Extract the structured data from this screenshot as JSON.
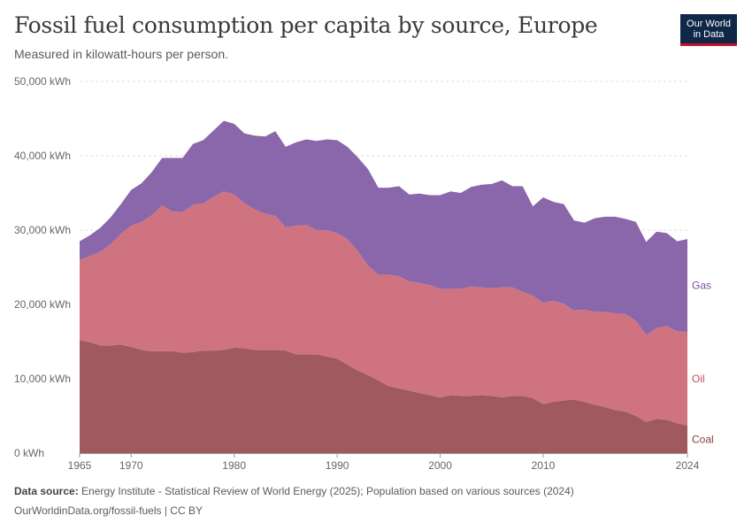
{
  "title": "Fossil fuel consumption per capita by source, Europe",
  "subtitle": "Measured in kilowatt-hours per person.",
  "logo": {
    "line1": "Our World",
    "line2": "in Data"
  },
  "footer": {
    "source_label": "Data source:",
    "source_text": "Energy Institute - Statistical Review of World Energy (2025); Population based on various sources (2024)",
    "url": "OurWorldinData.org/fossil-fuels | CC BY"
  },
  "colors": {
    "coal": "#a05a5f",
    "oil": "#cf7380",
    "gas": "#8a66aa",
    "coal_label": "#8b3a40",
    "oil_label": "#c24d5f",
    "gas_label": "#7a4f9e"
  },
  "chart_data": {
    "type": "area",
    "stacked": true,
    "x": [
      1965,
      1966,
      1967,
      1968,
      1969,
      1970,
      1971,
      1972,
      1973,
      1974,
      1975,
      1976,
      1977,
      1978,
      1979,
      1980,
      1981,
      1982,
      1983,
      1984,
      1985,
      1986,
      1987,
      1988,
      1989,
      1990,
      1991,
      1992,
      1993,
      1994,
      1995,
      1996,
      1997,
      1998,
      1999,
      2000,
      2001,
      2002,
      2003,
      2004,
      2005,
      2006,
      2007,
      2008,
      2009,
      2010,
      2011,
      2012,
      2013,
      2014,
      2015,
      2016,
      2017,
      2018,
      2019,
      2020,
      2021,
      2022,
      2023,
      2024
    ],
    "series": [
      {
        "name": "Coal",
        "values": [
          15200,
          14900,
          14500,
          14500,
          14600,
          14300,
          13900,
          13700,
          13700,
          13700,
          13500,
          13600,
          13800,
          13800,
          13900,
          14200,
          14100,
          13900,
          13900,
          13900,
          13800,
          13300,
          13300,
          13300,
          13000,
          12700,
          11900,
          11100,
          10500,
          9800,
          9000,
          8700,
          8400,
          8100,
          7800,
          7500,
          7800,
          7700,
          7700,
          7800,
          7700,
          7500,
          7700,
          7700,
          7400,
          6600,
          6900,
          7100,
          7200,
          6900,
          6500,
          6200,
          5800,
          5600,
          5000,
          4200,
          4600,
          4500,
          4000,
          3700
        ]
      },
      {
        "name": "Oil",
        "values": [
          10800,
          11600,
          12600,
          13600,
          14900,
          16300,
          17200,
          18300,
          19600,
          18800,
          18900,
          19800,
          19800,
          20700,
          21300,
          20600,
          19500,
          18900,
          18300,
          18000,
          16600,
          17300,
          17400,
          16700,
          17000,
          16900,
          16900,
          16100,
          14700,
          14200,
          15000,
          15100,
          14700,
          14800,
          14800,
          14600,
          14300,
          14400,
          14700,
          14500,
          14500,
          14800,
          14600,
          14000,
          13800,
          13600,
          13600,
          13000,
          12000,
          12400,
          12500,
          12800,
          13000,
          13100,
          12800,
          11700,
          12200,
          12600,
          12400,
          12600
        ]
      },
      {
        "name": "Gas",
        "values": [
          2500,
          2800,
          3200,
          3600,
          4000,
          4800,
          5200,
          5800,
          6400,
          7200,
          7300,
          8200,
          8500,
          8900,
          9500,
          9500,
          9400,
          9900,
          10400,
          11400,
          10800,
          11200,
          11500,
          12000,
          12200,
          12500,
          12400,
          12600,
          13000,
          11700,
          11700,
          12100,
          11700,
          12000,
          12100,
          12600,
          13100,
          12900,
          13400,
          13800,
          14000,
          14400,
          13600,
          14200,
          12000,
          14200,
          13300,
          13400,
          12100,
          11700,
          12600,
          12800,
          13000,
          12800,
          13300,
          12500,
          13000,
          12500,
          12100,
          12500
        ]
      }
    ],
    "ylim": [
      0,
      50000
    ],
    "yticks": [
      "0 kWh",
      "10,000 kWh",
      "20,000 kWh",
      "30,000 kWh",
      "40,000 kWh",
      "50,000 kWh"
    ],
    "ytick_values": [
      0,
      10000,
      20000,
      30000,
      40000,
      50000
    ],
    "xticks": [
      "1965",
      "1970",
      "1980",
      "1990",
      "2000",
      "2010",
      "2024"
    ],
    "xtick_values": [
      1965,
      1970,
      1980,
      1990,
      2000,
      2010,
      2024
    ],
    "grid": true,
    "legend": "inline-right"
  }
}
